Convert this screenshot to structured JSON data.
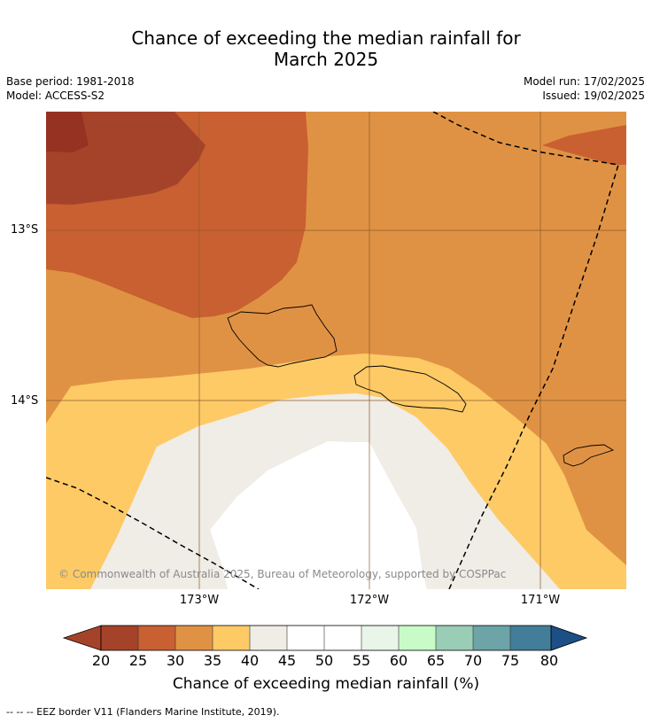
{
  "title": {
    "line1": "Chance of exceeding the median rainfall for",
    "line2": "March 2025"
  },
  "meta": {
    "base_period": "Base period: 1981-2018",
    "model": "Model: ACCESS-S2",
    "model_run": "Model run: 17/02/2025",
    "issued": "Issued: 19/02/2025"
  },
  "map": {
    "latitude_labels": [
      "13°S",
      "14°S"
    ],
    "longitude_labels": [
      "173°W",
      "172°W",
      "171°W"
    ],
    "copyright": "© Commonwealth of Australia 2025, Bureau of Meteorology, supported by COSPPac",
    "colors": {
      "20-25": "#a5432a",
      "25-30": "#c96031",
      "30-35": "#e09244",
      "35-40": "#fdca66",
      "40-45": "#f0ece6",
      "45-55": "#ffffff",
      "under-20": "#963221",
      "eez_border": "#000000",
      "coastline": "#000000",
      "grid": "#8b5a2b"
    }
  },
  "colorbar": {
    "ticks": [
      "20",
      "25",
      "30",
      "35",
      "40",
      "45",
      "50",
      "55",
      "60",
      "65",
      "70",
      "75",
      "80"
    ],
    "colors": [
      "#a5432a",
      "#c96031",
      "#e09244",
      "#fdca66",
      "#f0ece6",
      "#ffffff",
      "#ffffff",
      "#e9f5e9",
      "#c8fbc8",
      "#9acdb5",
      "#6ca4a7",
      "#427d99"
    ],
    "under_color": "#a5432a",
    "over_color": "#1c4f86",
    "label": "Chance of exceeding median rainfall (%)"
  },
  "footnote": "--  --  -- EEZ border V11 (Flanders Marine Institute, 2019)."
}
